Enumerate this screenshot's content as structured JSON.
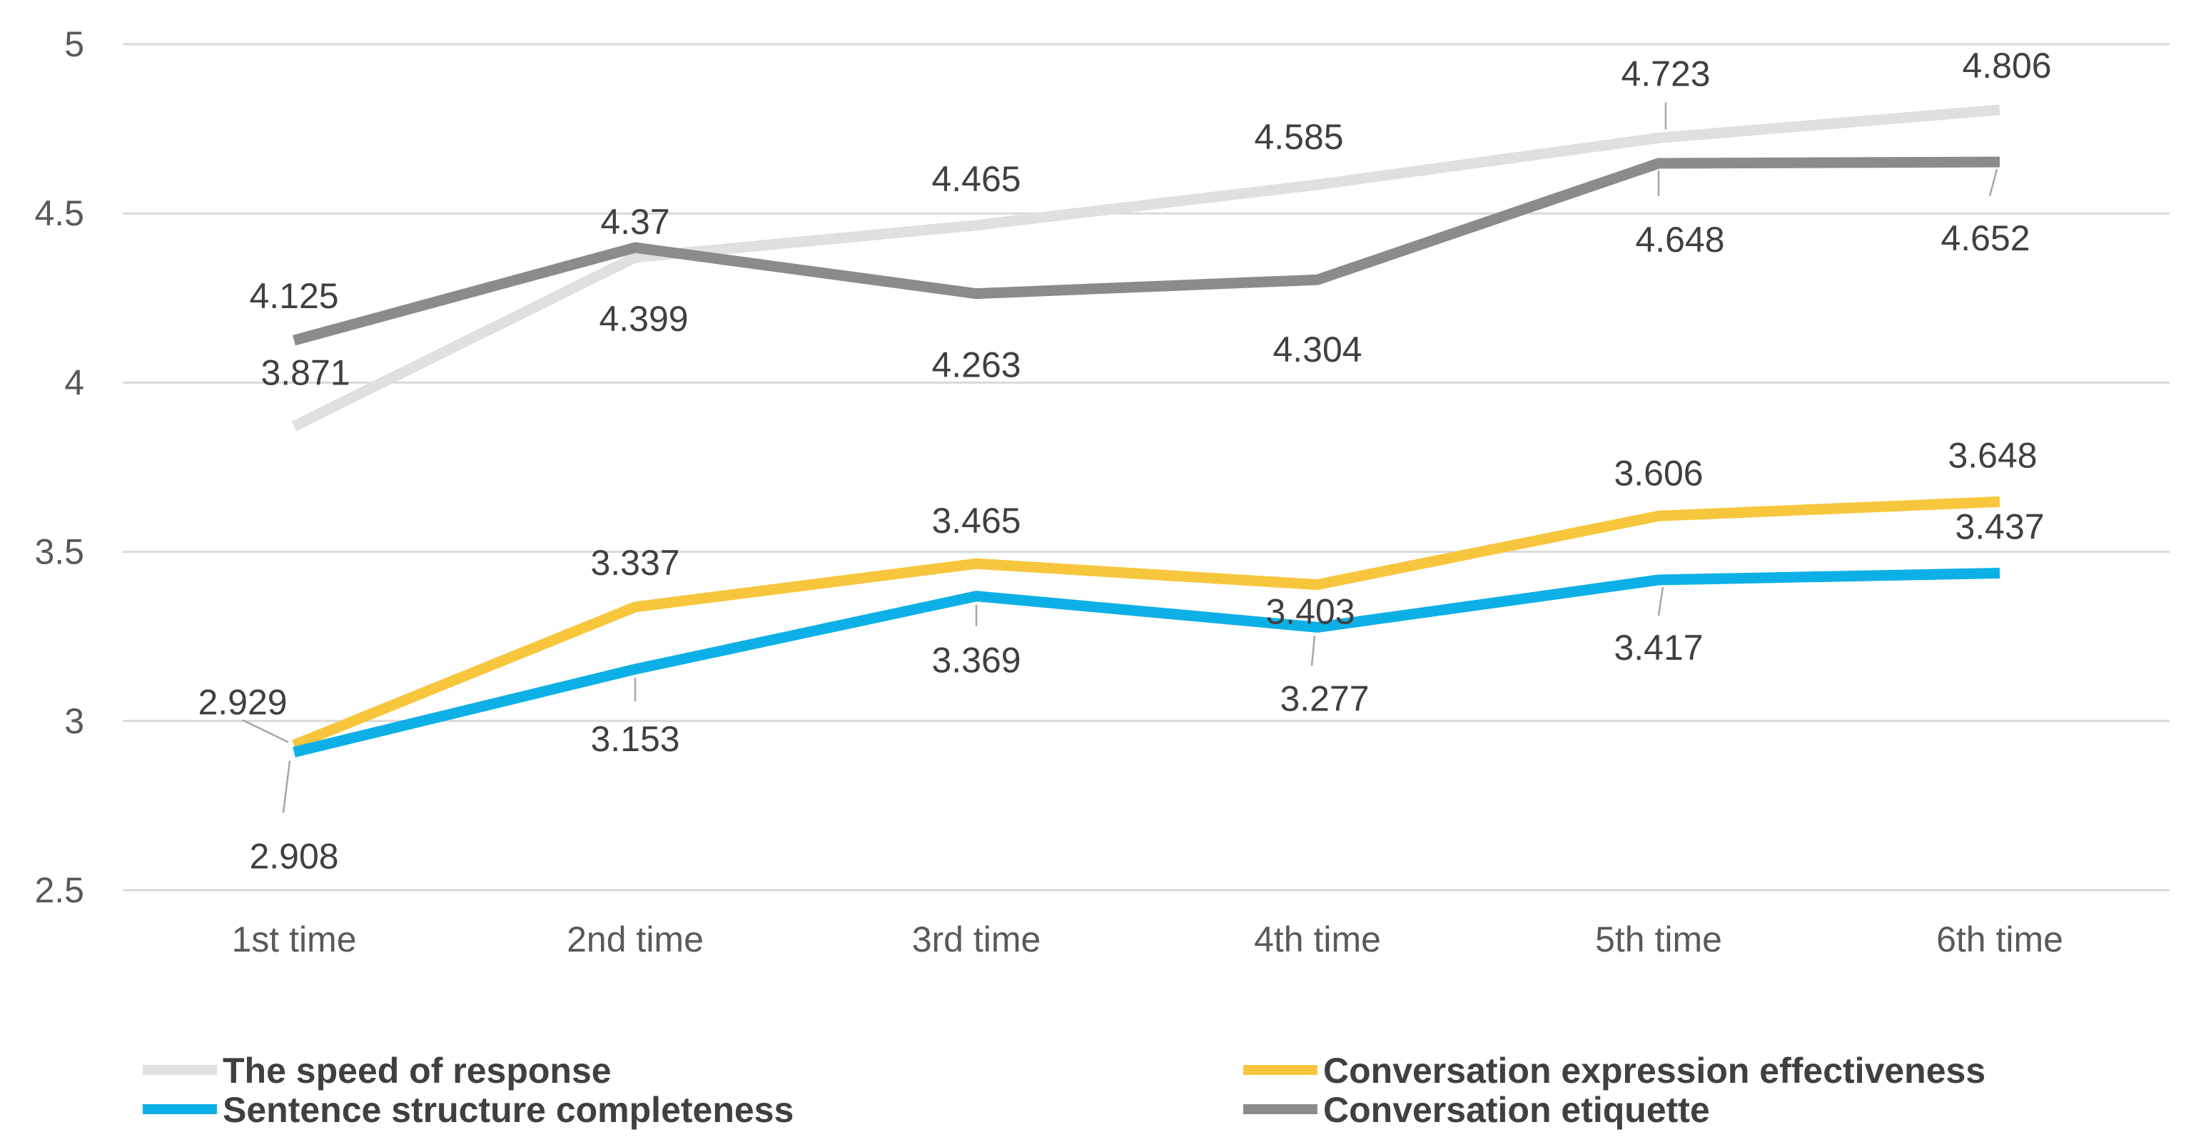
{
  "chart_data": {
    "type": "line",
    "title": "",
    "xlabel": "",
    "ylabel": "",
    "ylim": [
      2.5,
      5
    ],
    "yticks": [
      2.5,
      3,
      3.5,
      4,
      4.5,
      5
    ],
    "ytick_labels": [
      "2.5",
      "3",
      "3.5",
      "4",
      "4.5",
      "5"
    ],
    "grid": true,
    "legend_position": "bottom",
    "categories": [
      "1st time",
      "2nd time",
      "3rd time",
      "4th time",
      "5th time",
      "6th time"
    ],
    "series": [
      {
        "name": "The speed of response",
        "color": "#e0e0e0",
        "values": [
          3.871,
          4.37,
          4.465,
          4.585,
          4.723,
          4.806
        ],
        "labels": [
          "3.871",
          "4.37",
          "4.465",
          "4.585",
          "4.723",
          "4.806"
        ]
      },
      {
        "name": "Conversation expression effectiveness",
        "color": "#f8c63d",
        "values": [
          2.929,
          3.337,
          3.465,
          3.403,
          3.606,
          3.648
        ],
        "labels": [
          "2.929",
          "3.337",
          "3.465",
          "3.403",
          "3.606",
          "3.648"
        ]
      },
      {
        "name": "Sentence structure completeness",
        "color": "#0db0e6",
        "values": [
          2.908,
          3.153,
          3.369,
          3.277,
          3.417,
          3.437
        ],
        "labels": [
          "2.908",
          "3.153",
          "3.369",
          "3.277",
          "3.417",
          "3.437"
        ]
      },
      {
        "name": "Conversation etiquette",
        "color": "#8c8a8b",
        "values": [
          4.125,
          4.399,
          4.263,
          4.304,
          4.648,
          4.652
        ],
        "labels": [
          "4.125",
          "4.399",
          "4.263",
          "4.304",
          "4.648",
          "4.652"
        ]
      }
    ]
  }
}
